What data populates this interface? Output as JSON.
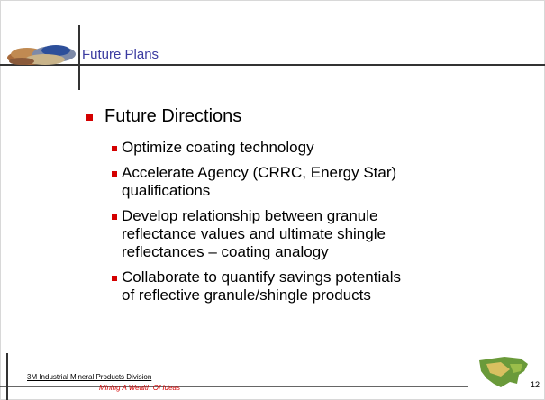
{
  "header": {
    "title": "Future Plans"
  },
  "content": {
    "heading": "Future Directions",
    "items": [
      [
        "Optimize coating technology"
      ],
      [
        "Accelerate Agency (CRRC, Energy Star)",
        "qualifications"
      ],
      [
        "Develop relationship between granule",
        "reflectance values and ultimate shingle",
        "reflectances – coating analogy"
      ],
      [
        "Collaborate to quantify savings potentials",
        "of reflective granule/shingle products"
      ]
    ]
  },
  "footer": {
    "division": "3M Industrial Mineral Products Division",
    "tagline": "Mining A Wealth Of Ideas",
    "page_number": "12"
  }
}
